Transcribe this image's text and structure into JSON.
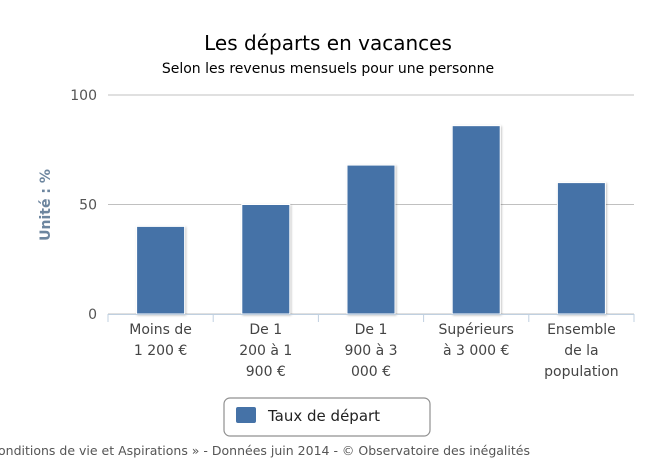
{
  "chart_data": {
    "type": "bar",
    "title": "Les départs en vacances",
    "subtitle": "Selon les revenus mensuels pour une personne",
    "ylabel": "Unité : %",
    "xlabel": "",
    "ylim": [
      0,
      100
    ],
    "yticks": [
      0,
      50,
      100
    ],
    "grid": true,
    "legend_position": "bottom",
    "categories": [
      [
        "Moins de",
        "1 200 €"
      ],
      [
        "De 1",
        "200 à 1",
        "900 €"
      ],
      [
        "De 1",
        "900 à 3",
        "000 €"
      ],
      [
        "Supérieurs",
        "à 3 000 €"
      ],
      [
        "Ensemble",
        "de la",
        "population"
      ]
    ],
    "series": [
      {
        "name": "Taux de départ",
        "color": "#4572a7",
        "values": [
          40,
          50,
          68,
          86,
          60
        ]
      }
    ]
  },
  "credit": "onditions de vie et Aspirations » - Données juin 2014 - © Observatoire des inégalités"
}
